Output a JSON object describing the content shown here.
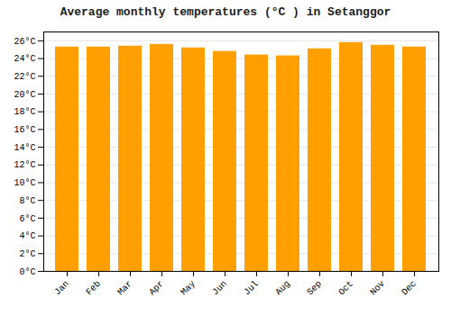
{
  "chart_data": {
    "type": "bar",
    "title": "Average monthly temperatures (°C ) in Setanggor",
    "categories": [
      "Jan",
      "Feb",
      "Mar",
      "Apr",
      "May",
      "Jun",
      "Jul",
      "Aug",
      "Sep",
      "Oct",
      "Nov",
      "Dec"
    ],
    "values": [
      25.3,
      25.3,
      25.4,
      25.6,
      25.2,
      24.8,
      24.4,
      24.3,
      25.1,
      25.8,
      25.5,
      25.3
    ],
    "color": "#FFA000",
    "ylim": [
      0,
      27
    ],
    "yticks": [
      {
        "value": 0,
        "label": "0°C"
      },
      {
        "value": 2,
        "label": "2°C"
      },
      {
        "value": 4,
        "label": "4°C"
      },
      {
        "value": 6,
        "label": "6°C"
      },
      {
        "value": 8,
        "label": "8°C"
      },
      {
        "value": 10,
        "label": "10°C"
      },
      {
        "value": 12,
        "label": "12°C"
      },
      {
        "value": 14,
        "label": "14°C"
      },
      {
        "value": 16,
        "label": "16°C"
      },
      {
        "value": 18,
        "label": "18°C"
      },
      {
        "value": 20,
        "label": "20°C"
      },
      {
        "value": 22,
        "label": "22°C"
      },
      {
        "value": 24,
        "label": "24°C"
      },
      {
        "value": 26,
        "label": "26°C"
      }
    ],
    "grid": true
  }
}
